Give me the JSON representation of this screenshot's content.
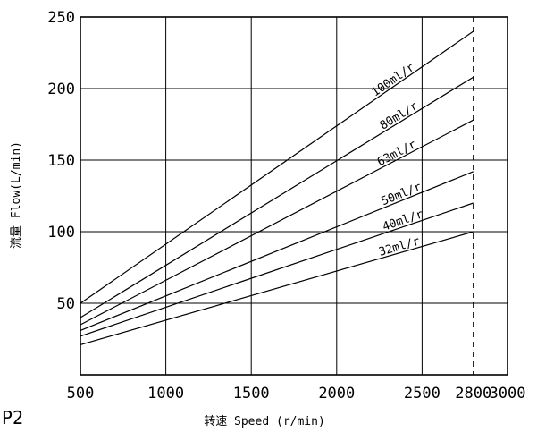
{
  "page_label": "P2",
  "chart_data": {
    "type": "line",
    "title": "",
    "xlabel": "转速 Speed (r/min)",
    "ylabel": "流量 Flow(L/min)",
    "xlim": [
      500,
      3000
    ],
    "ylim": [
      0,
      250
    ],
    "grid": true,
    "x_ticks": [
      500,
      1000,
      1500,
      2000,
      2500,
      2800,
      3000
    ],
    "y_ticks": [
      50,
      100,
      150,
      200,
      250
    ],
    "gridlines_x": [
      500,
      1000,
      1500,
      2000,
      2500,
      3000
    ],
    "gridlines_y": [
      50,
      100,
      150,
      200,
      250
    ],
    "reference_line": {
      "x": 2800,
      "style": "dashed"
    },
    "series": [
      {
        "name": "100ml/r",
        "x": [
          500,
          2800
        ],
        "y": [
          50,
          240
        ]
      },
      {
        "name": "80ml/r",
        "x": [
          500,
          2800
        ],
        "y": [
          40,
          208
        ]
      },
      {
        "name": "63ml/r",
        "x": [
          500,
          2800
        ],
        "y": [
          35,
          178
        ]
      },
      {
        "name": "50ml/r",
        "x": [
          500,
          2800
        ],
        "y": [
          31,
          142
        ]
      },
      {
        "name": "40ml/r",
        "x": [
          500,
          2800
        ],
        "y": [
          27,
          120
        ]
      },
      {
        "name": "32ml/r",
        "x": [
          500,
          2800
        ],
        "y": [
          21,
          100
        ]
      }
    ]
  }
}
